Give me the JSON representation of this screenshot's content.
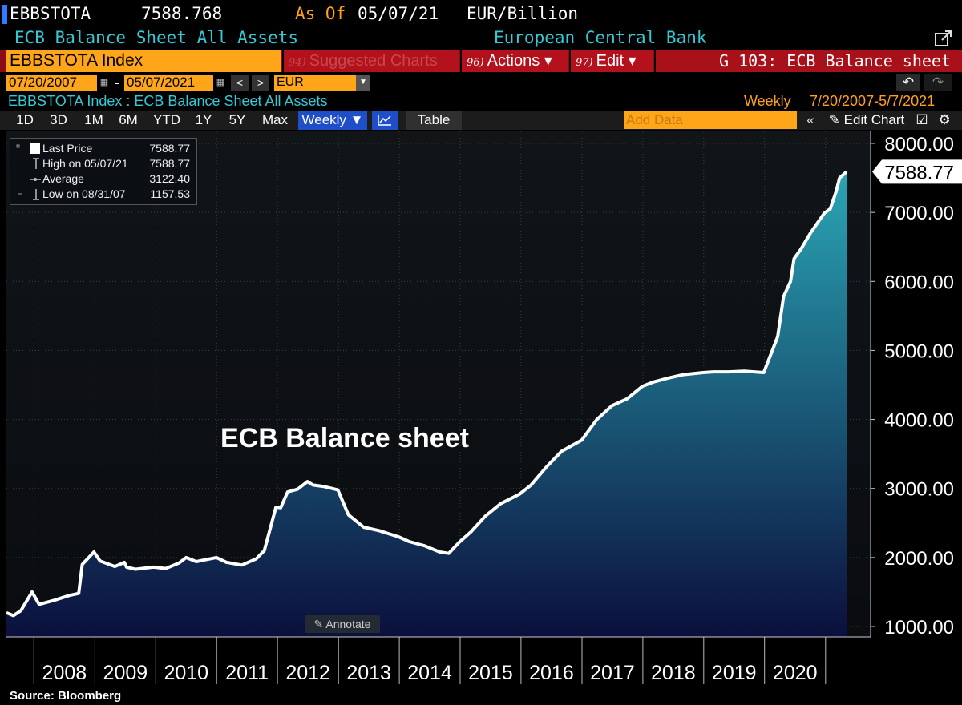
{
  "header": {
    "ticker": "EBBSTOTA",
    "last_value": "7588.768",
    "asof_label": "As Of",
    "asof_date": "05/07/21",
    "units": "EUR/Billion",
    "subtitle": "ECB Balance Sheet All Assets",
    "source_name": "European Central Bank"
  },
  "command_bar": {
    "security": "EBBSTOTA Index",
    "suggested_num": "94)",
    "suggested_label": "Suggested Charts",
    "actions_num": "96)",
    "actions_label": "Actions ▾",
    "edit_num": "97)",
    "edit_label": "Edit ▾",
    "title": "G 103: ECB Balance sheet"
  },
  "date_range": {
    "start": "07/20/2007",
    "end": "05/07/2021",
    "currency": "EUR",
    "dash": "-",
    "prev": "<",
    "next": ">",
    "undo": "↶",
    "redo": "↷"
  },
  "info_row": {
    "description": "EBBSTOTA Index : ECB Balance Sheet All Assets",
    "frequency": "Weekly",
    "range": "7/20/2007-5/7/2021"
  },
  "toolbar": {
    "periods": [
      "1D",
      "3D",
      "1M",
      "6M",
      "YTD",
      "1Y",
      "5Y",
      "Max"
    ],
    "frequency_button": "Weekly ▼",
    "table_button": "Table",
    "add_data_placeholder": "Add Data",
    "collapse": "«",
    "edit_chart": "✎ Edit Chart"
  },
  "legend": {
    "rows": [
      {
        "label": "Last Price",
        "value": "7588.77"
      },
      {
        "label": "High on 05/07/21",
        "value": "7588.77"
      },
      {
        "label": "Average",
        "value": "3122.40"
      },
      {
        "label": "Low on 08/31/07",
        "value": "1157.53"
      }
    ]
  },
  "annotate_label": "Annotate",
  "source_text": "Source:  Bloomberg",
  "colors": {
    "line": "#ffffff",
    "area_top": "#2aa6b5",
    "area_bottom": "#0b0f3c",
    "accent_orange": "#ffa51a",
    "accent_cyan": "#35c9d6",
    "command_red": "#b3111b"
  },
  "chart_data": {
    "type": "area",
    "title": "ECB Balance sheet",
    "xlabel": "",
    "ylabel": "",
    "ylim": [
      1000,
      8000
    ],
    "yticks": [
      1000,
      2000,
      3000,
      4000,
      5000,
      6000,
      7000,
      8000
    ],
    "ytick_labels": [
      "1000.00",
      "2000.00",
      "3000.00",
      "4000.00",
      "5000.00",
      "6000.00",
      "7000.00",
      "8000.00"
    ],
    "year_labels": [
      "2008",
      "2009",
      "2010",
      "2011",
      "2012",
      "2013",
      "2014",
      "2015",
      "2016",
      "2017",
      "2018",
      "2019",
      "2020"
    ],
    "last_label": "7588.77",
    "grid": true,
    "series": [
      {
        "x": [
          "2007-07-20",
          "2007-08-31",
          "2007-10-15",
          "2007-12-21",
          "2008-02-01",
          "2008-05-01",
          "2008-08-01",
          "2008-09-26",
          "2008-10-17",
          "2008-12-26",
          "2009-02-01",
          "2009-05-01",
          "2009-06-26",
          "2009-07-10",
          "2009-09-01",
          "2009-12-18",
          "2010-03-01",
          "2010-05-21",
          "2010-07-02",
          "2010-09-01",
          "2010-12-31",
          "2011-03-01",
          "2011-06-01",
          "2011-08-26",
          "2011-10-14",
          "2011-12-23",
          "2012-01-20",
          "2012-03-02",
          "2012-05-01",
          "2012-06-29",
          "2012-08-01",
          "2012-10-01",
          "2012-12-28",
          "2013-03-01",
          "2013-06-01",
          "2013-09-01",
          "2013-12-27",
          "2014-03-01",
          "2014-06-01",
          "2014-09-01",
          "2014-10-24",
          "2014-12-26",
          "2015-03-06",
          "2015-06-01",
          "2015-09-01",
          "2015-12-25",
          "2016-03-01",
          "2016-06-01",
          "2016-09-01",
          "2016-12-30",
          "2017-03-31",
          "2017-06-30",
          "2017-09-29",
          "2017-12-29",
          "2018-03-01",
          "2018-06-01",
          "2018-09-01",
          "2018-12-28",
          "2019-03-01",
          "2019-06-01",
          "2019-09-01",
          "2019-12-27",
          "2020-03-20",
          "2020-04-24",
          "2020-06-05",
          "2020-06-26",
          "2020-08-07",
          "2020-10-02",
          "2020-12-25",
          "2021-01-29",
          "2021-03-05",
          "2021-03-26",
          "2021-05-07"
        ],
        "values": [
          1200,
          1158,
          1230,
          1500,
          1320,
          1380,
          1450,
          1480,
          1900,
          2080,
          1950,
          1870,
          1930,
          1860,
          1830,
          1860,
          1840,
          1920,
          2000,
          1940,
          2000,
          1930,
          1890,
          1980,
          2100,
          2730,
          2720,
          2950,
          2990,
          3100,
          3050,
          3030,
          2980,
          2620,
          2440,
          2390,
          2300,
          2230,
          2170,
          2080,
          2060,
          2220,
          2370,
          2600,
          2780,
          2920,
          3050,
          3310,
          3540,
          3700,
          4000,
          4200,
          4300,
          4480,
          4540,
          4600,
          4650,
          4680,
          4690,
          4690,
          4700,
          4680,
          5200,
          5780,
          6000,
          6330,
          6470,
          6700,
          6990,
          7050,
          7300,
          7500,
          7589
        ]
      }
    ]
  }
}
